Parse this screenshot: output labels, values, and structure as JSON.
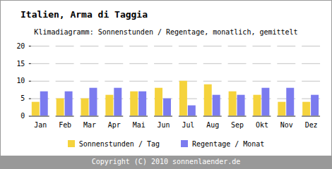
{
  "chart_data": {
    "type": "bar",
    "title": "Italien, Arma di Taggia",
    "subtitle": "Klimadiagramm: Sonnenstunden / Regentage, monatlich, gemittelt",
    "caption": "Copyright (C) 2010 sonnenlaender.de",
    "categories": [
      "Jan",
      "Feb",
      "Mar",
      "Apr",
      "Mai",
      "Jun",
      "Jul",
      "Aug",
      "Sep",
      "Okt",
      "Nov",
      "Dez"
    ],
    "series": [
      {
        "name": "Sonnenstunden / Tag",
        "color": "#f5d33c",
        "values": [
          4,
          5,
          5,
          6,
          7,
          8,
          10,
          9,
          7,
          6,
          4,
          4
        ]
      },
      {
        "name": "Regentage / Monat",
        "color": "#7b7bef",
        "values": [
          7,
          7,
          8,
          8,
          7,
          5,
          3,
          6,
          6,
          8,
          8,
          6
        ]
      }
    ],
    "ylim": [
      0,
      20
    ],
    "yticks": [
      0,
      5,
      10,
      15,
      20
    ],
    "grid": true,
    "legend": "bottom"
  }
}
